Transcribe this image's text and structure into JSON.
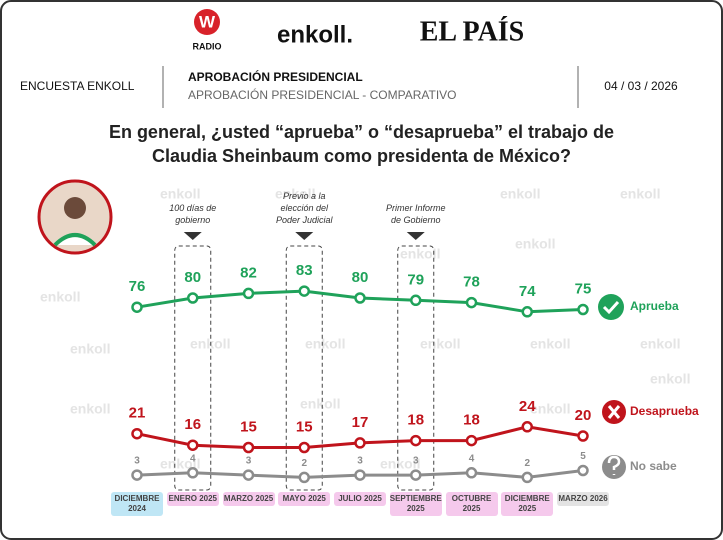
{
  "header": {
    "logo_w": "W",
    "logo_radio": "RADIO",
    "logo_enkoll": "enkoll.",
    "logo_pais": "EL PAÍS",
    "left": "ENCUESTA ENKOLL",
    "title": "APROBACIÓN PRESIDENCIAL",
    "subtitle": "APROBACIÓN PRESIDENCIAL - COMPARATIVO",
    "date": "04 / 03 / 2026"
  },
  "chart_data": {
    "type": "line",
    "title": [
      "En general, ¿usted “aprueba” o “desaprueba” el trabajo de",
      "Claudia Sheinbaum como presidenta de México?"
    ],
    "categories": [
      "DICIEMBRE 2024",
      "ENERO 2025",
      "MARZO 2025",
      "MAYO 2025",
      "JULIO 2025",
      "SEPTIEMBRE 2025",
      "OCTUBRE 2025",
      "DICIEMBRE 2025",
      "MARZO 2026"
    ],
    "annotations": [
      null,
      "100 días de gobierno",
      null,
      "Previo a la elección del Poder Judicial",
      null,
      "Primer Informe de Gobierno",
      null,
      null,
      null
    ],
    "series": [
      {
        "name": "Aprueba",
        "color": "#1fa25a",
        "values": [
          76,
          80,
          82,
          83,
          80,
          79,
          78,
          74,
          75
        ]
      },
      {
        "name": "Desaprueba",
        "color": "#c0141c",
        "values": [
          21,
          16,
          15,
          15,
          17,
          18,
          18,
          24,
          20
        ]
      },
      {
        "name": "No sabe",
        "color": "#8c8c8c",
        "values": [
          3,
          4,
          3,
          2,
          3,
          3,
          4,
          2,
          5
        ]
      }
    ],
    "watermark": "enkoll"
  }
}
